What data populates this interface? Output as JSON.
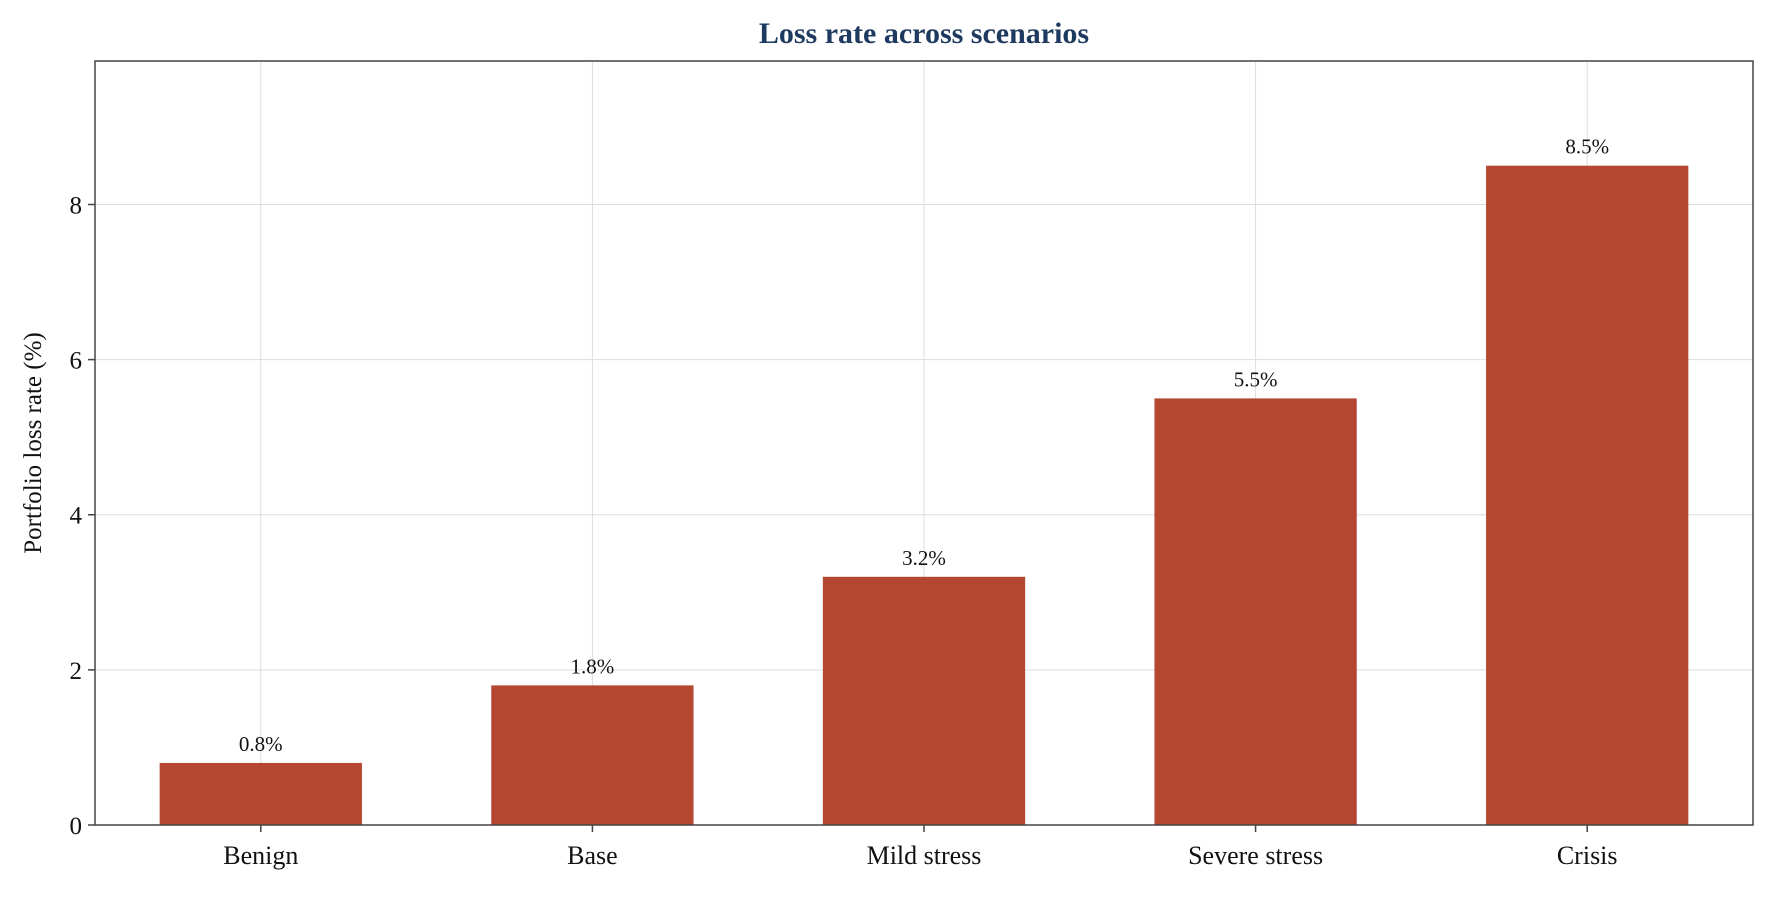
{
  "chart_data": {
    "type": "bar",
    "title": "Loss rate across scenarios",
    "xlabel": "",
    "ylabel": "Portfolio loss rate (%)",
    "categories": [
      "Benign",
      "Base",
      "Mild stress",
      "Severe stress",
      "Crisis"
    ],
    "values": [
      0.8,
      1.8,
      3.2,
      5.5,
      8.5
    ],
    "data_labels": [
      "0.8%",
      "1.8%",
      "3.2%",
      "5.5%",
      "8.5%"
    ],
    "yticks": [
      0,
      2,
      4,
      6,
      8
    ],
    "ylim": [
      0,
      9.85
    ],
    "grid": true,
    "legend": "none"
  },
  "colors": {
    "bar": "#b3472f",
    "title": "#1f3a5f",
    "axis": "#444444",
    "grid": "#dddddd",
    "text": "#111111"
  }
}
